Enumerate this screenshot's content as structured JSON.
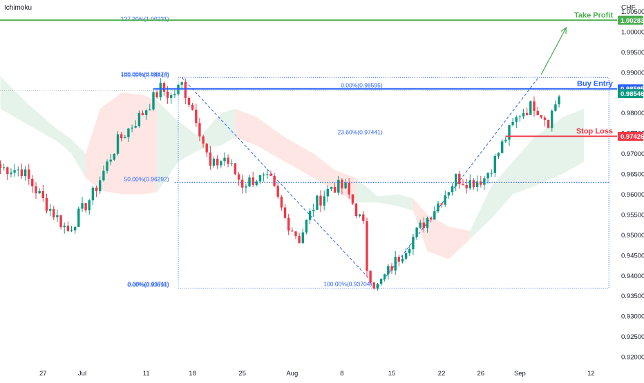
{
  "chart_data": {
    "type": "candlestick",
    "indicator_label": "Ichimoku",
    "currency_label": "CHF",
    "ylim": [
      0.9178,
      1.0078
    ],
    "y_ticks": [
      "1.00500",
      "1.00000",
      "0.99500",
      "0.99000",
      "0.98500",
      "0.98000",
      "0.97500",
      "0.97000",
      "0.96500",
      "0.96000",
      "0.95500",
      "0.95000",
      "0.94500",
      "0.94000",
      "0.93500",
      "0.93000",
      "0.92500",
      "0.92000"
    ],
    "x_ticks": [
      {
        "label": "27",
        "i": 12
      },
      {
        "label": "Jul",
        "i": 23
      },
      {
        "label": "11",
        "i": 41
      },
      {
        "label": "18",
        "i": 54
      },
      {
        "label": "25",
        "i": 68
      },
      {
        "label": "Aug",
        "i": 82
      },
      {
        "label": "8",
        "i": 96
      },
      {
        "label": "15",
        "i": 110
      },
      {
        "label": "22",
        "i": 124
      },
      {
        "label": "26",
        "i": 135
      },
      {
        "label": "Sep",
        "i": 146
      },
      {
        "label": "12",
        "i": 166
      }
    ],
    "key_points": [
      {
        "i": 0,
        "v": 0.9665
      },
      {
        "i": 6,
        "v": 0.966
      },
      {
        "i": 12,
        "v": 0.9585
      },
      {
        "i": 19,
        "v": 0.951
      },
      {
        "i": 26,
        "v": 0.96
      },
      {
        "i": 33,
        "v": 0.973
      },
      {
        "i": 40,
        "v": 0.98
      },
      {
        "i": 45,
        "v": 0.986
      },
      {
        "i": 48,
        "v": 0.984
      },
      {
        "i": 51,
        "v": 0.987
      },
      {
        "i": 55,
        "v": 0.979
      },
      {
        "i": 59,
        "v": 0.9665
      },
      {
        "i": 63,
        "v": 0.969
      },
      {
        "i": 68,
        "v": 0.9625
      },
      {
        "i": 72,
        "v": 0.964
      },
      {
        "i": 76,
        "v": 0.963
      },
      {
        "i": 80,
        "v": 0.954
      },
      {
        "i": 84,
        "v": 0.949
      },
      {
        "i": 88,
        "v": 0.957
      },
      {
        "i": 93,
        "v": 0.962
      },
      {
        "i": 97,
        "v": 0.9615
      },
      {
        "i": 100,
        "v": 0.956
      },
      {
        "i": 102,
        "v": 0.952
      },
      {
        "i": 103,
        "v": 0.942
      },
      {
        "i": 105,
        "v": 0.938
      },
      {
        "i": 106,
        "v": 0.9372
      },
      {
        "i": 109,
        "v": 0.941
      },
      {
        "i": 114,
        "v": 0.947
      },
      {
        "i": 119,
        "v": 0.953
      },
      {
        "i": 124,
        "v": 0.959
      },
      {
        "i": 128,
        "v": 0.964
      },
      {
        "i": 132,
        "v": 0.963
      },
      {
        "i": 136,
        "v": 0.964
      },
      {
        "i": 139,
        "v": 0.9685
      },
      {
        "i": 142,
        "v": 0.974
      },
      {
        "i": 146,
        "v": 0.98
      },
      {
        "i": 150,
        "v": 0.982
      },
      {
        "i": 154,
        "v": 0.978
      },
      {
        "i": 157,
        "v": 0.9845
      }
    ],
    "cloud_segments": [
      {
        "x": [
          0,
          8,
          16,
          20,
          24
        ],
        "top": [
          0.989,
          0.982,
          0.976,
          0.9735,
          0.97
        ],
        "bottom": [
          0.981,
          0.977,
          0.973,
          0.97,
          0.964
        ],
        "bullish": true
      },
      {
        "x": [
          24,
          28,
          34,
          40,
          44
        ],
        "top": [
          0.97,
          0.981,
          0.985,
          0.9845,
          0.983
        ],
        "bottom": [
          0.964,
          0.961,
          0.96,
          0.96,
          0.9605
        ],
        "bullish": false
      },
      {
        "x": [
          44,
          50,
          56,
          62,
          66
        ],
        "top": [
          0.983,
          0.978,
          0.974,
          0.98,
          0.981
        ],
        "bottom": [
          0.9605,
          0.968,
          0.971,
          0.972,
          0.974
        ],
        "bullish": true
      },
      {
        "x": [
          66,
          72,
          80,
          88,
          94,
          100
        ],
        "top": [
          0.981,
          0.979,
          0.974,
          0.97,
          0.966,
          0.964
        ],
        "bottom": [
          0.974,
          0.972,
          0.968,
          0.964,
          0.961,
          0.958
        ],
        "bullish": false
      },
      {
        "x": [
          100,
          106,
          112,
          116
        ],
        "top": [
          0.964,
          0.9595,
          0.96,
          0.959
        ],
        "bottom": [
          0.958,
          0.958,
          0.957,
          0.956
        ],
        "bullish": true
      },
      {
        "x": [
          116,
          120,
          126,
          132
        ],
        "top": [
          0.959,
          0.955,
          0.952,
          0.951
        ],
        "bottom": [
          0.956,
          0.946,
          0.944,
          0.949
        ],
        "bullish": false
      },
      {
        "x": [
          132,
          138,
          144,
          150,
          158,
          164
        ],
        "top": [
          0.951,
          0.962,
          0.968,
          0.974,
          0.979,
          0.981
        ],
        "bottom": [
          0.949,
          0.954,
          0.96,
          0.962,
          0.965,
          0.968
        ],
        "bullish": true
      }
    ],
    "levels": [
      {
        "name": "Take Profit",
        "value": 1.00283,
        "label": "1.00283",
        "color": "#4caf50"
      },
      {
        "name": "Buy Entry",
        "value": 0.98595,
        "label": "0.98595",
        "color": "#2962ff"
      },
      {
        "name": "Stop Loss",
        "value": 0.97426,
        "label": "0.97426",
        "color": "#f23645"
      }
    ],
    "last_price": {
      "value": 0.98546,
      "label": "0.98546",
      "color": "#089981"
    },
    "fib_labels": [
      {
        "text": "127.20%(1.00231)",
        "i": 48,
        "v": 1.00231
      },
      {
        "text": "100.00%(0.98874)",
        "i": 48,
        "v": 0.98874
      },
      {
        "text": "100.00%(0.98848)",
        "i": 48,
        "v": 0.98848
      },
      {
        "text": "0.00%(0.98595)",
        "i": 108,
        "v": 0.98595
      },
      {
        "text": "23.60%(0.97441)",
        "i": 108,
        "v": 0.97441
      },
      {
        "text": "50.00%(0.96292)",
        "i": 48,
        "v": 0.96292
      },
      {
        "text": "0.00%(0.93711)",
        "i": 48,
        "v": 0.93711
      },
      {
        "text": "0.00%(0.93690)",
        "i": 48,
        "v": 0.9369
      },
      {
        "text": "100.00%(0.93704)",
        "i": 105,
        "v": 0.93704
      }
    ],
    "fib_box": {
      "i_start": 50,
      "i_end": 171,
      "top": 0.98874,
      "bottom": 0.9369
    },
    "fib_lines": [
      {
        "i_start": 49,
        "i_end": 171,
        "v": 0.98595
      },
      {
        "i_start": 49,
        "i_end": 171,
        "v": 0.96292
      },
      {
        "i_start": 142,
        "i_end": 171,
        "v": 0.97426
      }
    ],
    "diagonals": [
      {
        "i1": 51,
        "v1": 0.9887,
        "i2": 106,
        "v2": 0.937
      },
      {
        "i1": 106,
        "v1": 0.937,
        "i2": 151,
        "v2": 0.9885
      }
    ],
    "arrow": {
      "i1": 152,
      "v1": 0.9895,
      "i2": 159,
      "v2": 1.001
    },
    "grid": false,
    "legend": "none"
  }
}
